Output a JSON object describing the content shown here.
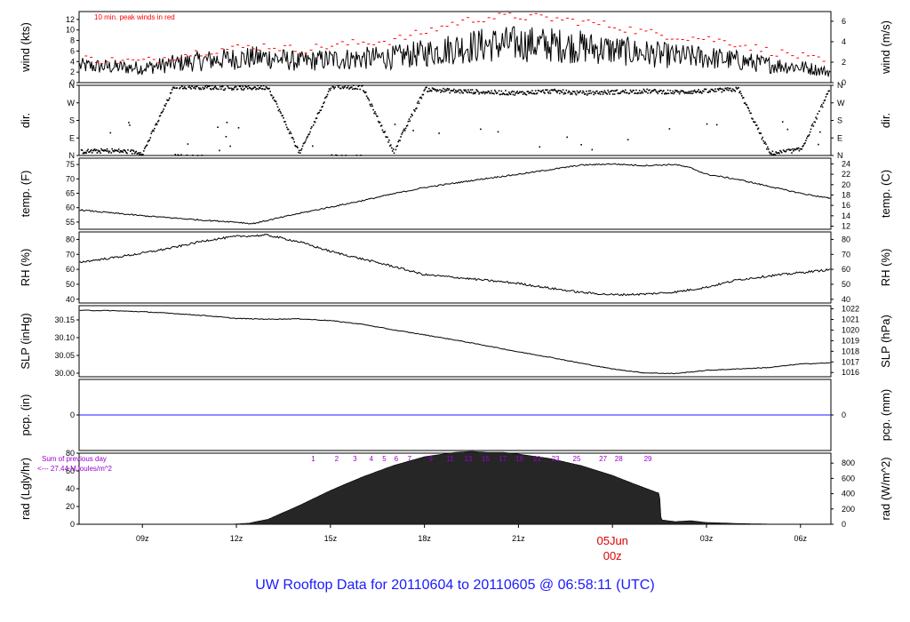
{
  "footer_title": "UW Rooftop Data for 20110604  to  20110605 @ 06:58:11  (UTC)",
  "colors": {
    "axis": "#000000",
    "series": "#000000",
    "peak": "#ff0000",
    "precip_line": "#1a1aff",
    "solar_labels": "#9900cc",
    "date_label": "#dd0000",
    "footer": "#1a1aff"
  },
  "x_axis": {
    "tick_labels": [
      "09z",
      "12z",
      "15z",
      "18z",
      "21z",
      "00z",
      "03z",
      "06z"
    ],
    "tick_hours": [
      9,
      12,
      15,
      18,
      21,
      24,
      27,
      30
    ],
    "range_hours": [
      6.98,
      30.97
    ],
    "date_label": "05Jun",
    "date_sub_label": "00z"
  },
  "chart_data": [
    {
      "type": "line",
      "id": "wind",
      "ylabel": "wind (kts)",
      "ylabel_right": "wind (m/s)",
      "annotation": "10 min. peak winds in red",
      "ylim": [
        0,
        13.5
      ],
      "yticks": [
        0,
        2,
        4,
        6,
        8,
        10,
        12
      ],
      "right_ylim": [
        0,
        6.95
      ],
      "right_yticks": [
        0,
        2,
        4,
        6
      ],
      "x_hours": [
        7.0,
        8.0,
        9.0,
        10.0,
        11.0,
        12.0,
        13.0,
        14.0,
        15.0,
        16.0,
        17.0,
        18.0,
        19.0,
        20.0,
        21.0,
        22.0,
        23.0,
        24.0,
        25.0,
        26.0,
        27.0,
        28.0,
        29.0,
        30.0,
        30.95
      ],
      "series": [
        {
          "values": [
            3.2,
            3.0,
            2.8,
            3.6,
            4.2,
            4.6,
            4.8,
            4.0,
            4.4,
            4.6,
            4.8,
            5.6,
            6.6,
            7.2,
            7.4,
            7.2,
            6.8,
            6.2,
            5.6,
            5.0,
            4.8,
            4.2,
            3.4,
            3.0,
            2.0
          ]
        },
        {
          "values": [
            4.6,
            4.2,
            4.0,
            5.0,
            6.0,
            6.6,
            7.0,
            6.2,
            7.0,
            7.6,
            8.0,
            9.6,
            11.4,
            12.4,
            12.6,
            12.2,
            11.6,
            10.8,
            9.6,
            8.8,
            8.4,
            7.4,
            6.0,
            5.0,
            3.6
          ]
        }
      ]
    },
    {
      "type": "scatter",
      "id": "dir",
      "ylabel": "dir.",
      "ylabel_right": "dir.",
      "ylim": [
        0,
        360
      ],
      "ytick_values": [
        0,
        90,
        180,
        270,
        360
      ],
      "ytick_labels": [
        "N",
        "E",
        "S",
        "W",
        "N"
      ],
      "x_hours": [
        7.0,
        8.0,
        9.0,
        10.0,
        11.0,
        12.0,
        13.0,
        14.0,
        15.0,
        16.0,
        17.0,
        18.0,
        19.0,
        20.0,
        21.0,
        22.0,
        23.0,
        24.0,
        25.0,
        26.0,
        27.0,
        28.0,
        29.0,
        30.0,
        30.95
      ],
      "series": [
        {
          "values": [
            20,
            25,
            15,
            355,
            350,
            345,
            350,
            10,
            355,
            350,
            20,
            340,
            330,
            325,
            320,
            330,
            320,
            325,
            330,
            325,
            330,
            340,
            10,
            30,
            350
          ]
        }
      ]
    },
    {
      "type": "line",
      "id": "temp",
      "ylabel": "temp. (F)",
      "ylabel_right": "temp. (C)",
      "ylim": [
        52.5,
        77.2
      ],
      "yticks": [
        55,
        60,
        65,
        70,
        75
      ],
      "right_ylim": [
        11.4,
        25.1
      ],
      "right_yticks": [
        12,
        14,
        16,
        18,
        20,
        22,
        24
      ],
      "x_hours": [
        7.0,
        8.0,
        9.0,
        10.0,
        11.0,
        12.0,
        12.5,
        13.0,
        14.0,
        15.0,
        16.0,
        17.0,
        18.0,
        19.0,
        20.0,
        21.0,
        22.0,
        23.0,
        24.0,
        25.0,
        26.0,
        26.5,
        27.0,
        28.0,
        29.0,
        30.0,
        30.95
      ],
      "series": [
        {
          "values": [
            59.2,
            58.2,
            57.2,
            56.4,
            55.6,
            55.0,
            54.4,
            55.6,
            58.0,
            60.2,
            62.4,
            64.8,
            67.0,
            68.6,
            70.2,
            71.6,
            73.2,
            74.8,
            75.2,
            74.6,
            75.0,
            73.8,
            71.6,
            69.8,
            67.4,
            65.0,
            63.2
          ]
        }
      ]
    },
    {
      "type": "line",
      "id": "rh",
      "ylabel": "RH (%)",
      "ylabel_right": "RH (%)",
      "ylim": [
        37.5,
        85.0
      ],
      "yticks": [
        40,
        50,
        60,
        70,
        80
      ],
      "right_yticks": [
        40,
        50,
        60,
        70,
        80
      ],
      "x_hours": [
        7.0,
        8.0,
        9.0,
        10.0,
        11.0,
        12.0,
        13.0,
        14.0,
        15.0,
        16.0,
        17.0,
        18.0,
        19.0,
        20.0,
        21.0,
        22.0,
        23.0,
        24.0,
        25.0,
        26.0,
        27.0,
        28.0,
        29.0,
        30.0,
        30.95
      ],
      "series": [
        {
          "values": [
            64.8,
            67.6,
            70.8,
            74.6,
            79.2,
            82.0,
            82.8,
            78.4,
            72.0,
            67.0,
            62.0,
            56.4,
            54.6,
            52.6,
            50.6,
            47.4,
            44.6,
            43.0,
            43.4,
            44.8,
            48.0,
            53.0,
            55.6,
            57.8,
            59.8
          ]
        }
      ]
    },
    {
      "type": "line",
      "id": "slp",
      "ylabel": "SLP (inHg)",
      "ylabel_right": "SLP (hPa)",
      "ylim": [
        29.99,
        30.19
      ],
      "yticks": [
        30.0,
        30.05,
        30.1,
        30.15
      ],
      "ytick_labels": [
        "30.00",
        "30.05",
        "30.10",
        "30.15"
      ],
      "right_ylim": [
        1015.6,
        1022.3
      ],
      "right_yticks": [
        1016,
        1017,
        1018,
        1019,
        1020,
        1021,
        1022
      ],
      "x_hours": [
        7.0,
        8.0,
        9.0,
        10.0,
        11.0,
        12.0,
        13.0,
        14.0,
        15.0,
        16.0,
        17.0,
        18.0,
        19.0,
        20.0,
        21.0,
        22.0,
        23.0,
        24.0,
        25.0,
        26.0,
        27.0,
        28.0,
        29.0,
        30.0,
        30.95
      ],
      "series": [
        {
          "values": [
            30.177,
            30.176,
            30.173,
            30.168,
            30.162,
            30.154,
            30.152,
            30.153,
            30.148,
            30.138,
            30.122,
            30.108,
            30.093,
            30.077,
            30.06,
            30.045,
            30.028,
            30.012,
            30.001,
            29.999,
            30.008,
            30.012,
            30.016,
            30.026,
            30.029
          ]
        }
      ]
    },
    {
      "type": "line",
      "id": "pcp",
      "ylabel": "pcp. (in)",
      "ylabel_right": "pcp. (mm)",
      "ylim": [
        -1,
        1
      ],
      "yticks": [
        0
      ],
      "right_yticks": [
        0
      ],
      "x_hours": [
        6.98,
        30.97
      ],
      "series": [
        {
          "values": [
            0,
            0
          ]
        }
      ]
    },
    {
      "type": "area",
      "id": "rad",
      "ylabel": "rad (Lgly/hr)",
      "ylabel_right": "rad (W/m^2)",
      "ylim": [
        0,
        80
      ],
      "yticks": [
        0,
        20,
        40,
        60,
        80
      ],
      "right_ylim": [
        0,
        930
      ],
      "right_yticks": [
        0,
        200,
        400,
        600,
        800
      ],
      "annotation_line1": "Sum of previous day",
      "annotation_line2": "<--- 27.44 MJoules/m^2",
      "hour_markers": [
        "1",
        "2",
        "3",
        "4",
        "5",
        "6",
        "7",
        "9",
        "11",
        "13",
        "15",
        "17",
        "19",
        "21",
        "23",
        "25",
        "27",
        "28",
        "29"
      ],
      "hour_marker_x": [
        14.45,
        15.2,
        15.78,
        16.3,
        16.72,
        17.1,
        17.52,
        18.2,
        18.82,
        19.4,
        19.95,
        20.5,
        21.03,
        21.6,
        22.18,
        22.86,
        23.7,
        24.2,
        25.13
      ],
      "x_hours": [
        7.0,
        11.7,
        12.0,
        12.4,
        12.7,
        13.0,
        14.0,
        15.0,
        16.0,
        17.0,
        18.0,
        19.0,
        19.5,
        20.0,
        20.5,
        21.0,
        22.0,
        23.0,
        24.0,
        24.5,
        25.4,
        25.5,
        25.55,
        26.0,
        26.5,
        27.0,
        27.5,
        28.0,
        29.0,
        30.95
      ],
      "series": [
        {
          "values": [
            0,
            0,
            0.3,
            1.2,
            3.5,
            5.5,
            21,
            38,
            53,
            66,
            76,
            81,
            82,
            81,
            81,
            79,
            74,
            66,
            55,
            48,
            36,
            35,
            5,
            3,
            4,
            2,
            1.5,
            0.8,
            0.2,
            0
          ]
        }
      ]
    }
  ]
}
